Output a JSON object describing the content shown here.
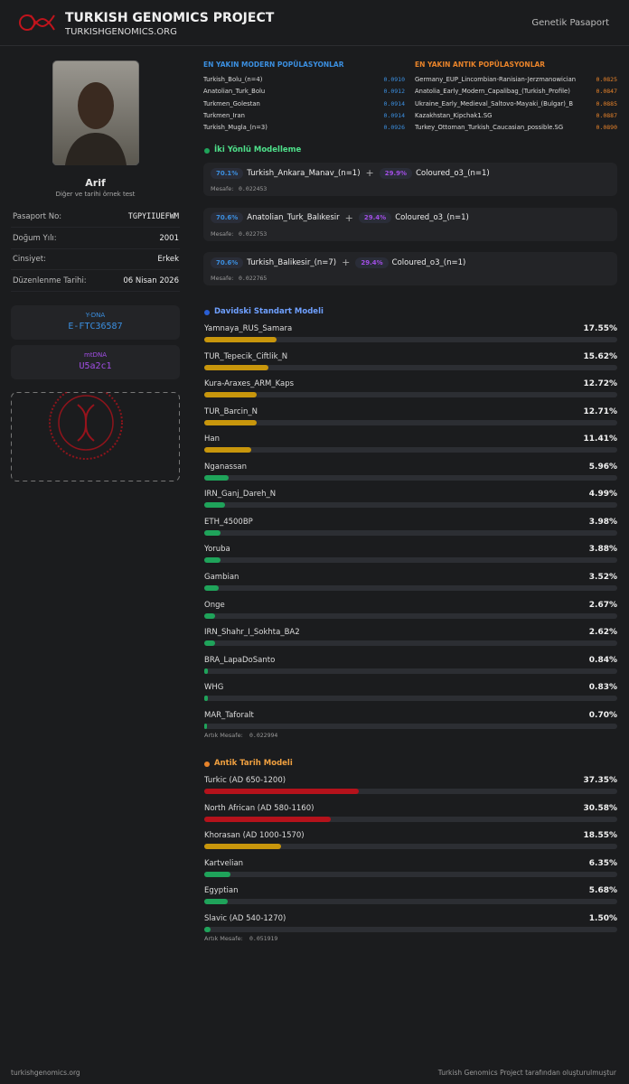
{
  "header": {
    "title": "TURKISH GENOMICS PROJECT",
    "site": "TURKISHGENOMICS.ORG",
    "nav": "Genetik Pasaport"
  },
  "profile": {
    "name": "Arif",
    "subtitle": "Diğer ve tarihi örnek test",
    "fields": [
      {
        "label": "Pasaport No:",
        "value": "TGPYIIUEFWM"
      },
      {
        "label": "Doğum Yılı:",
        "value": "2001"
      },
      {
        "label": "Cinsiyet:",
        "value": "Erkek"
      },
      {
        "label": "Düzenlenme Tarihi:",
        "value": "06 Nisan 2026"
      }
    ],
    "ydna": {
      "label": "Y-DNA",
      "value": "E-FTC36587"
    },
    "mtdna": {
      "label": "mtDNA",
      "value": "U5a2c1"
    }
  },
  "modern": {
    "title": "EN YAKIN MODERN POPÜLASYONLAR",
    "rows": [
      [
        "Turkish_Bolu_(n=4)",
        "0.0910"
      ],
      [
        "Anatolian_Turk_Bolu",
        "0.0912"
      ],
      [
        "Turkmen_Golestan",
        "0.0914"
      ],
      [
        "Turkmen_Iran",
        "0.0914"
      ],
      [
        "Turkish_Mugla_(n=3)",
        "0.0926"
      ]
    ]
  },
  "ancient": {
    "title": "EN YAKIN ANTIK POPÜLASYONLAR",
    "rows": [
      [
        "Germany_EUP_Lincombian-Ranisian-Jerzmanowician",
        "0.0825"
      ],
      [
        "Anatolia_Early_Modern_Capalibag_(Turkish_Profile)",
        "0.0847"
      ],
      [
        "Ukraine_Early_Medieval_Saltovo-Mayaki_(Bulgar)_B",
        "0.0885"
      ],
      [
        "Kazakhstan_Kipchak1.SG",
        "0.0887"
      ],
      [
        "Turkey_Ottoman_Turkish_Caucasian_possible.SG",
        "0.0890"
      ]
    ]
  },
  "two_way": {
    "title": "İki Yönlü Modelleme",
    "models": [
      {
        "pct1": "70.1%",
        "pop1": "Turkish_Ankara_Manav_(n=1)",
        "pct2": "29.9%",
        "pop2": "Coloured_o3_(n=1)",
        "distance_label": "Mesafe:",
        "distance": "0.022453"
      },
      {
        "pct1": "70.6%",
        "pop1": "Anatolian_Turk_Balıkesir",
        "pct2": "29.4%",
        "pop2": "Coloured_o3_(n=1)",
        "distance_label": "Mesafe:",
        "distance": "0.022753"
      },
      {
        "pct1": "70.6%",
        "pop1": "Turkish_Balikesir_(n=7)",
        "pct2": "29.4%",
        "pop2": "Coloured_o3_(n=1)",
        "distance_label": "Mesafe:",
        "distance": "0.022765"
      }
    ]
  },
  "davidski": {
    "title": "Davidski Standart Modeli",
    "residual_label": "Artık Mesafe:",
    "residual": "0.022994",
    "items": [
      {
        "name": "Yamnaya_RUS_Samara",
        "value": 17.55,
        "label": "17.55%",
        "color": "#c8960c"
      },
      {
        "name": "TUR_Tepecik_Ciftlik_N",
        "value": 15.62,
        "label": "15.62%",
        "color": "#c8960c"
      },
      {
        "name": "Kura-Araxes_ARM_Kaps",
        "value": 12.72,
        "label": "12.72%",
        "color": "#c8960c"
      },
      {
        "name": "TUR_Barcin_N",
        "value": 12.71,
        "label": "12.71%",
        "color": "#c8960c"
      },
      {
        "name": "Han",
        "value": 11.41,
        "label": "11.41%",
        "color": "#c8960c"
      },
      {
        "name": "Nganassan",
        "value": 5.96,
        "label": "5.96%",
        "color": "#1fa35a"
      },
      {
        "name": "IRN_Ganj_Dareh_N",
        "value": 4.99,
        "label": "4.99%",
        "color": "#1fa35a"
      },
      {
        "name": "ETH_4500BP",
        "value": 3.98,
        "label": "3.98%",
        "color": "#1fa35a"
      },
      {
        "name": "Yoruba",
        "value": 3.88,
        "label": "3.88%",
        "color": "#1fa35a"
      },
      {
        "name": "Gambian",
        "value": 3.52,
        "label": "3.52%",
        "color": "#1fa35a"
      },
      {
        "name": "Onge",
        "value": 2.67,
        "label": "2.67%",
        "color": "#1fa35a"
      },
      {
        "name": "IRN_Shahr_I_Sokhta_BA2",
        "value": 2.62,
        "label": "2.62%",
        "color": "#1fa35a"
      },
      {
        "name": "BRA_LapaDoSanto",
        "value": 0.84,
        "label": "0.84%",
        "color": "#1fa35a"
      },
      {
        "name": "WHG",
        "value": 0.83,
        "label": "0.83%",
        "color": "#1fa35a"
      },
      {
        "name": "MAR_Taforalt",
        "value": 0.7,
        "label": "0.70%",
        "color": "#1fa35a"
      }
    ]
  },
  "antik": {
    "title": "Antik Tarih Modeli",
    "residual_label": "Artık Mesafe:",
    "residual": "0.051919",
    "items": [
      {
        "name": "Turkic (AD 650-1200)",
        "value": 37.35,
        "label": "37.35%",
        "color": "#b5121b"
      },
      {
        "name": "North African (AD 580-1160)",
        "value": 30.58,
        "label": "30.58%",
        "color": "#b5121b"
      },
      {
        "name": "Khorasan (AD 1000-1570)",
        "value": 18.55,
        "label": "18.55%",
        "color": "#c8960c"
      },
      {
        "name": "Kartvelian",
        "value": 6.35,
        "label": "6.35%",
        "color": "#1fa35a"
      },
      {
        "name": "Egyptian",
        "value": 5.68,
        "label": "5.68%",
        "color": "#1fa35a"
      },
      {
        "name": "Slavic (AD 540-1270)",
        "value": 1.5,
        "label": "1.50%",
        "color": "#1fa35a"
      }
    ]
  },
  "footer": {
    "left": "turkishgenomics.org",
    "right": "Turkish Genomics Project tarafından oluşturulmuştur"
  }
}
